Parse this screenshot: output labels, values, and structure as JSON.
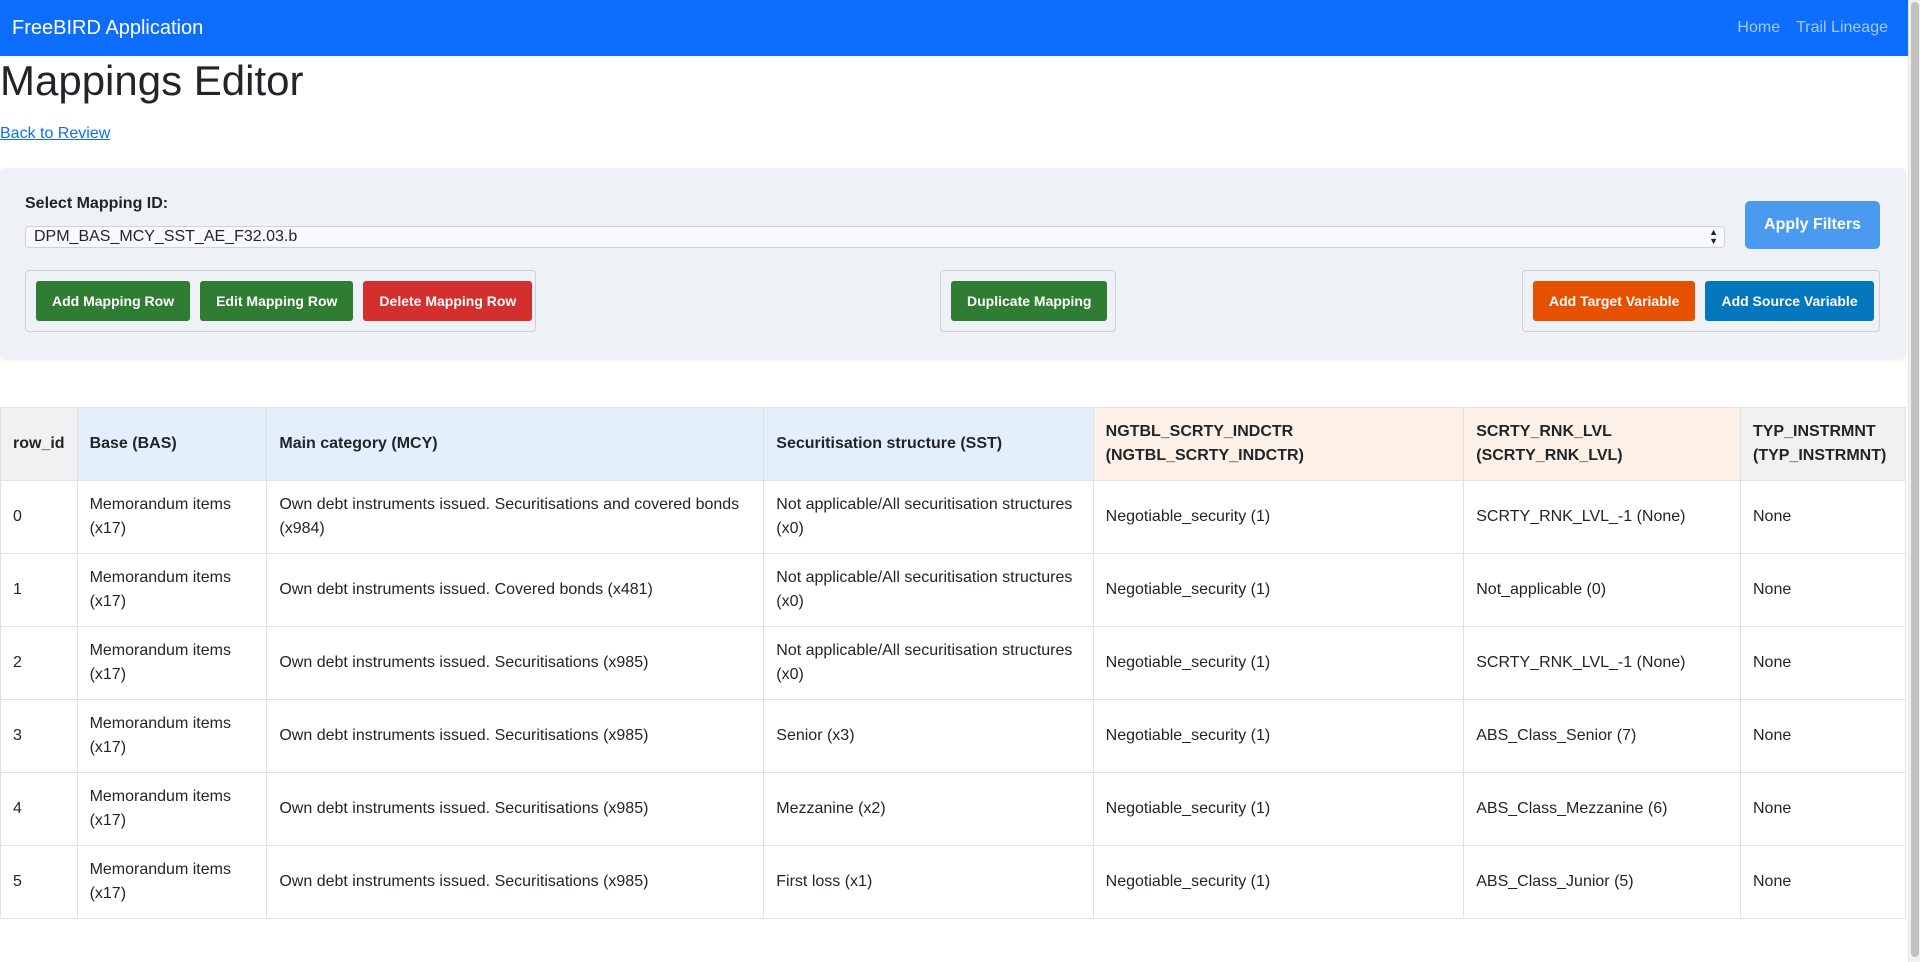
{
  "navbar": {
    "brand": "FreeBIRD Application",
    "links": [
      "Home",
      "Trail Lineage"
    ]
  },
  "page": {
    "title": "Mappings Editor",
    "back_link": "Back to Review"
  },
  "filters": {
    "select_label": "Select Mapping ID:",
    "selected_mapping_id": "DPM_BAS_MCY_SST_AE_F32.03.b",
    "apply_label": "Apply Filters"
  },
  "actions": {
    "add_row": "Add Mapping Row",
    "edit_row": "Edit Mapping Row",
    "delete_row": "Delete Mapping Row",
    "duplicate": "Duplicate Mapping",
    "add_target": "Add Target Variable",
    "add_source": "Add Source Variable"
  },
  "colors": {
    "navbar": "#0d6efd",
    "green": "#2e7d32",
    "red": "#d32f2f",
    "orange": "#e65100",
    "blue": "#0277bd",
    "source_header": "#e3f0fc",
    "target_header": "#fdf0e6"
  },
  "table": {
    "headers": [
      "row_id",
      "Base (BAS)",
      "Main category (MCY)",
      "Securitisation structure (SST)",
      "NGTBL_SCRTY_INDCTR (NGTBL_SCRTY_INDCTR)",
      "SCRTY_RNK_LVL (SCRTY_RNK_LVL)",
      "TYP_INSTRMNT (TYP_INSTRMNT)"
    ],
    "rows": [
      [
        "0",
        "Memorandum items (x17)",
        "Own debt instruments issued. Securitisations and covered bonds (x984)",
        "Not applicable/All securitisation structures (x0)",
        "Negotiable_security (1)",
        "SCRTY_RNK_LVL_-1 (None)",
        "None"
      ],
      [
        "1",
        "Memorandum items (x17)",
        "Own debt instruments issued. Covered bonds (x481)",
        "Not applicable/All securitisation structures (x0)",
        "Negotiable_security (1)",
        "Not_applicable (0)",
        "None"
      ],
      [
        "2",
        "Memorandum items (x17)",
        "Own debt instruments issued. Securitisations (x985)",
        "Not applicable/All securitisation structures (x0)",
        "Negotiable_security (1)",
        "SCRTY_RNK_LVL_-1 (None)",
        "None"
      ],
      [
        "3",
        "Memorandum items (x17)",
        "Own debt instruments issued. Securitisations (x985)",
        "Senior (x3)",
        "Negotiable_security (1)",
        "ABS_Class_Senior (7)",
        "None"
      ],
      [
        "4",
        "Memorandum items (x17)",
        "Own debt instruments issued. Securitisations (x985)",
        "Mezzanine (x2)",
        "Negotiable_security (1)",
        "ABS_Class_Mezzanine (6)",
        "None"
      ],
      [
        "5",
        "Memorandum items (x17)",
        "Own debt instruments issued. Securitisations (x985)",
        "First loss (x1)",
        "Negotiable_security (1)",
        "ABS_Class_Junior (5)",
        "None"
      ]
    ]
  }
}
